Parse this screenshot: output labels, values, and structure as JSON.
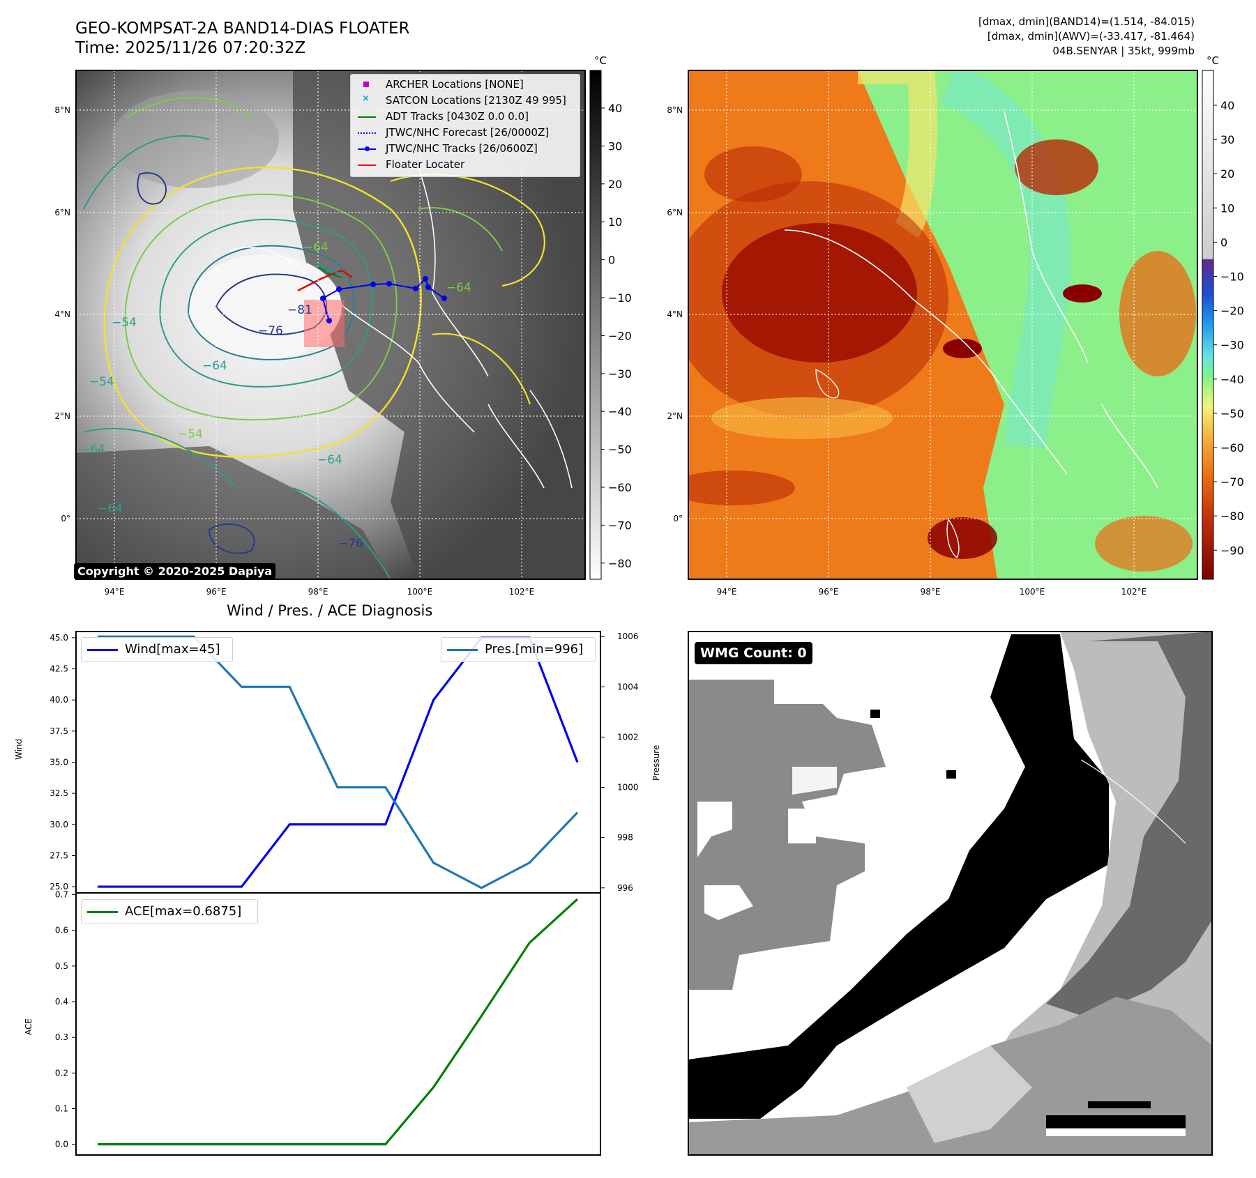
{
  "header": {
    "title_line1": "GEO-KOMPSAT-2A BAND14-DIAS FLOATER",
    "title_line2": "Time: 2025/11/26 07:20:32Z",
    "info_line1": "[dmax, dmin](BAND14)=(1.514, -84.015)",
    "info_line2": "[dmax, dmin](AWV)=(-33.417, -81.464)",
    "info_line3": "04B.SENYAR | 35kt, 999mb"
  },
  "map_axes": {
    "lon_labels": [
      "94°E",
      "96°E",
      "98°E",
      "100°E",
      "102°E"
    ],
    "lat_labels": [
      "8°N",
      "6°N",
      "4°N",
      "2°N",
      "0°"
    ]
  },
  "ir_panel": {
    "colorbar_unit": "°C",
    "colorbar_ticks": [
      "40",
      "30",
      "20",
      "10",
      "0",
      "−10",
      "−20",
      "−30",
      "−40",
      "−50",
      "−60",
      "−70",
      "−80"
    ],
    "contour_labels": [
      "−76",
      "−64",
      "−54",
      "−64",
      "−54",
      "−64",
      "−76",
      "−81",
      "−64",
      "−54",
      "−64",
      "−64"
    ],
    "copyright": "Copyright © 2020-2025 Dapiya",
    "legend": [
      {
        "label": "ARCHER Locations [NONE]",
        "color": "#c000c0",
        "icon": "square-marker-icon"
      },
      {
        "label": "SATCON Locations [2130Z 49 995]",
        "color": "#00b0b0",
        "icon": "x-marker-icon"
      },
      {
        "label": "ADT Tracks [0430Z 0.0 0.0]",
        "color": "#008000",
        "icon": "solid-line-icon"
      },
      {
        "label": "JTWC/NHC Forecast [26/0000Z]",
        "color": "#0000ff",
        "icon": "dotted-line-icon"
      },
      {
        "label": "JTWC/NHC Tracks [26/0600Z]",
        "color": "#0000ff",
        "icon": "dot-line-icon"
      },
      {
        "label": "Floater Locater",
        "color": "#ff0000",
        "icon": "solid-line-icon"
      }
    ]
  },
  "awv_panel": {
    "colorbar_unit": "°C",
    "colorbar_ticks": [
      "40",
      "30",
      "20",
      "10",
      "0",
      "−10",
      "−20",
      "−30",
      "−40",
      "−50",
      "−60",
      "−70",
      "−80",
      "−90"
    ]
  },
  "wmg_panel": {
    "badge": "WMG Count: 0"
  },
  "diagnosis": {
    "title": "Wind / Pres. / ACE Diagnosis",
    "wind_axis_label": "Wind",
    "pressure_axis_label": "Pressure",
    "ace_axis_label": "ACE",
    "wind_ticks": [
      "45.0",
      "42.5",
      "40.0",
      "37.5",
      "35.0",
      "32.5",
      "30.0",
      "27.5",
      "25.0"
    ],
    "pressure_ticks": [
      "1006",
      "1004",
      "1002",
      "1000",
      "998",
      "996"
    ],
    "ace_ticks": [
      "0.7",
      "0.6",
      "0.5",
      "0.4",
      "0.3",
      "0.2",
      "0.1",
      "0.0"
    ],
    "wind_legend": "Wind[max=45]",
    "pressure_legend": "Pres.[min=996]",
    "ace_legend": "ACE[max=0.6875]"
  },
  "chart_data": [
    {
      "type": "line",
      "title": "Wind / Pres. / ACE Diagnosis",
      "x": [
        0,
        1,
        2,
        3,
        4,
        5,
        6,
        7,
        8,
        9,
        10
      ],
      "ylabel": "Wind",
      "ylim": [
        24.5,
        45.5
      ],
      "y2label": "Pressure",
      "y2lim": [
        995.8,
        1006.2
      ],
      "series": [
        {
          "name": "Wind[max=45]",
          "axis": "left",
          "color": "#0000ee",
          "values": [
            25,
            25,
            25,
            25,
            30,
            30,
            30,
            40,
            45,
            45,
            35
          ]
        },
        {
          "name": "Pres.[min=996]",
          "axis": "right",
          "color": "#1f77b4",
          "values": [
            1006,
            1006,
            1006,
            1004,
            1004,
            1000,
            1000,
            997,
            996,
            997,
            999
          ]
        }
      ],
      "legend": [
        "top-left",
        "top-right"
      ]
    },
    {
      "type": "line",
      "ylabel": "ACE",
      "ylim": [
        -0.03,
        0.705
      ],
      "x": [
        0,
        1,
        2,
        3,
        4,
        5,
        6,
        7,
        8,
        9,
        10
      ],
      "series": [
        {
          "name": "ACE[max=0.6875]",
          "color": "#008000",
          "values": [
            0,
            0,
            0,
            0,
            0,
            0,
            0,
            0.16,
            0.36,
            0.565,
            0.6875
          ]
        }
      ],
      "legend": "top-left"
    }
  ],
  "colors": {
    "wind": "#0000ee",
    "pressure": "#1f77b4",
    "ace": "#008000",
    "contour_yellow": "#f2e22a",
    "contour_green": "#7ccb4a",
    "contour_teal": "#2a9d8f",
    "contour_navy": "#283a8c"
  }
}
